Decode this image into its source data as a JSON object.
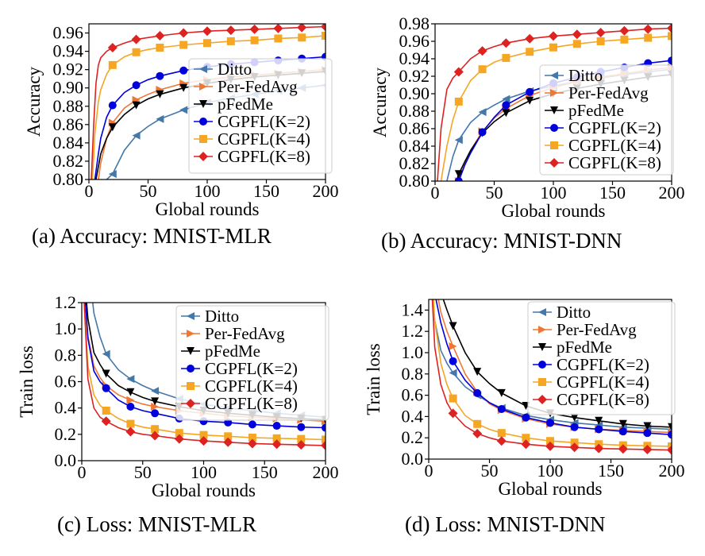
{
  "captions": [
    "(a) Accuracy: MNIST-MLR",
    "(b) Accuracy: MNIST-DNN",
    "(c) Loss: MNIST-MLR",
    "(d) Loss: MNIST-DNN"
  ],
  "colors": {
    "Ditto": "#4477aa",
    "Per-FedAvg": "#ee7733",
    "pFedMe": "#000000",
    "CGPFL(K=2)": "#0000dd",
    "CGPFL(K=4)": "#f5a623",
    "CGPFL(K=8)": "#dd2222"
  },
  "chart_data": [
    {
      "type": "line",
      "xlabel": "Global rounds",
      "ylabel": "Accuracy",
      "xlim": [
        0,
        200
      ],
      "ylim": [
        0.8,
        0.97
      ],
      "xticks": [
        0,
        50,
        100,
        150,
        200
      ],
      "yticks": [
        0.8,
        0.82,
        0.84,
        0.86,
        0.88,
        0.9,
        0.92,
        0.94,
        0.96
      ],
      "yticklabels": [
        "0.80",
        "0.82",
        "0.84",
        "0.86",
        "0.88",
        "0.90",
        "0.92",
        "0.94",
        "0.96"
      ],
      "legend": "right",
      "series": [
        {
          "name": "Ditto",
          "marker": "tri-left",
          "x": [
            15,
            20,
            30,
            40,
            50,
            60,
            80,
            100,
            120,
            140,
            160,
            180,
            200
          ],
          "values": [
            0.8,
            0.806,
            0.832,
            0.848,
            0.858,
            0.866,
            0.876,
            0.884,
            0.889,
            0.893,
            0.897,
            0.9,
            0.903
          ]
        },
        {
          "name": "Per-FedAvg",
          "marker": "tri-right",
          "x": [
            8,
            10,
            15,
            20,
            30,
            40,
            50,
            60,
            80,
            100,
            120,
            140,
            160,
            180,
            200
          ],
          "values": [
            0.8,
            0.818,
            0.845,
            0.862,
            0.878,
            0.887,
            0.893,
            0.898,
            0.905,
            0.909,
            0.912,
            0.914,
            0.916,
            0.918,
            0.92
          ]
        },
        {
          "name": "pFedMe",
          "marker": "tri-down",
          "x": [
            6,
            10,
            15,
            20,
            30,
            40,
            50,
            60,
            80,
            100,
            120,
            140,
            160,
            180,
            200
          ],
          "values": [
            0.8,
            0.828,
            0.845,
            0.857,
            0.871,
            0.881,
            0.888,
            0.893,
            0.9,
            0.905,
            0.909,
            0.912,
            0.914,
            0.916,
            0.918
          ]
        },
        {
          "name": "CGPFL(K=2)",
          "marker": "circle",
          "x": [
            5,
            8,
            10,
            15,
            20,
            30,
            40,
            50,
            60,
            80,
            100,
            120,
            140,
            160,
            180,
            200
          ],
          "values": [
            0.8,
            0.828,
            0.845,
            0.868,
            0.881,
            0.895,
            0.903,
            0.909,
            0.913,
            0.919,
            0.923,
            0.926,
            0.928,
            0.93,
            0.932,
            0.934
          ]
        },
        {
          "name": "CGPFL(K=4)",
          "marker": "square",
          "x": [
            3,
            5,
            8,
            10,
            15,
            20,
            30,
            40,
            50,
            60,
            80,
            100,
            120,
            140,
            160,
            180,
            200
          ],
          "values": [
            0.8,
            0.85,
            0.885,
            0.898,
            0.915,
            0.925,
            0.934,
            0.939,
            0.942,
            0.944,
            0.947,
            0.949,
            0.951,
            0.952,
            0.954,
            0.955,
            0.957
          ]
        },
        {
          "name": "CGPFL(K=8)",
          "marker": "diamond",
          "x": [
            2,
            4,
            6,
            8,
            10,
            15,
            20,
            30,
            40,
            50,
            60,
            80,
            100,
            120,
            140,
            160,
            180,
            200
          ],
          "values": [
            0.8,
            0.86,
            0.905,
            0.925,
            0.933,
            0.94,
            0.944,
            0.949,
            0.953,
            0.955,
            0.957,
            0.96,
            0.962,
            0.963,
            0.964,
            0.965,
            0.966,
            0.967
          ]
        }
      ]
    },
    {
      "type": "line",
      "xlabel": "Global rounds",
      "ylabel": "Accuracy",
      "xlim": [
        0,
        200
      ],
      "ylim": [
        0.8,
        0.98
      ],
      "xticks": [
        0,
        50,
        100,
        150,
        200
      ],
      "yticks": [
        0.8,
        0.82,
        0.84,
        0.86,
        0.88,
        0.9,
        0.92,
        0.94,
        0.96,
        0.98
      ],
      "yticklabels": [
        "0.80",
        "0.82",
        "0.84",
        "0.86",
        "0.88",
        "0.90",
        "0.92",
        "0.94",
        "0.96",
        "0.98"
      ],
      "legend": "center-left",
      "series": [
        {
          "name": "Ditto",
          "marker": "tri-left",
          "x": [
            10,
            15,
            20,
            30,
            40,
            50,
            60,
            80,
            100,
            120,
            140,
            160,
            180,
            200
          ],
          "values": [
            0.8,
            0.828,
            0.847,
            0.867,
            0.879,
            0.887,
            0.894,
            0.903,
            0.909,
            0.914,
            0.918,
            0.922,
            0.925,
            0.928
          ]
        },
        {
          "name": "Per-FedAvg",
          "marker": "tri-right",
          "x": [
            20,
            25,
            30,
            40,
            50,
            60,
            80,
            100,
            120,
            140,
            160,
            180,
            200
          ],
          "values": [
            0.8,
            0.82,
            0.835,
            0.857,
            0.872,
            0.883,
            0.898,
            0.907,
            0.914,
            0.919,
            0.923,
            0.927,
            0.93
          ]
        },
        {
          "name": "pFedMe",
          "marker": "tri-down",
          "x": [
            18,
            20,
            25,
            30,
            40,
            50,
            60,
            80,
            100,
            120,
            140,
            160,
            180,
            200
          ],
          "values": [
            0.8,
            0.808,
            0.822,
            0.835,
            0.855,
            0.868,
            0.878,
            0.892,
            0.9,
            0.906,
            0.911,
            0.915,
            0.919,
            0.922
          ]
        },
        {
          "name": "CGPFL(K=2)",
          "marker": "circle",
          "x": [
            20,
            25,
            30,
            40,
            50,
            60,
            80,
            100,
            120,
            140,
            160,
            180,
            200
          ],
          "values": [
            0.8,
            0.818,
            0.832,
            0.856,
            0.873,
            0.887,
            0.902,
            0.912,
            0.919,
            0.925,
            0.93,
            0.935,
            0.938
          ]
        },
        {
          "name": "CGPFL(K=4)",
          "marker": "square",
          "x": [
            5,
            10,
            15,
            20,
            30,
            40,
            50,
            60,
            80,
            100,
            120,
            140,
            160,
            180,
            200
          ],
          "values": [
            0.8,
            0.84,
            0.87,
            0.891,
            0.915,
            0.928,
            0.936,
            0.941,
            0.948,
            0.953,
            0.957,
            0.96,
            0.962,
            0.964,
            0.966
          ]
        },
        {
          "name": "CGPFL(K=8)",
          "marker": "diamond",
          "x": [
            2,
            5,
            10,
            15,
            20,
            30,
            40,
            50,
            60,
            80,
            100,
            120,
            140,
            160,
            180,
            200
          ],
          "values": [
            0.8,
            0.86,
            0.905,
            0.918,
            0.925,
            0.94,
            0.949,
            0.954,
            0.958,
            0.963,
            0.966,
            0.968,
            0.97,
            0.972,
            0.974,
            0.975
          ]
        }
      ]
    },
    {
      "type": "line",
      "xlabel": "Global rounds",
      "ylabel": "Train loss",
      "xlim": [
        0,
        200
      ],
      "ylim": [
        0.0,
        1.2
      ],
      "xticks": [
        0,
        50,
        100,
        150,
        200
      ],
      "yticks": [
        0.0,
        0.2,
        0.4,
        0.6,
        0.8,
        1.0,
        1.2
      ],
      "yticklabels": [
        "0.0",
        "0.2",
        "0.4",
        "0.6",
        "0.8",
        "1.0",
        "1.2"
      ],
      "legend": "right",
      "series": [
        {
          "name": "Ditto",
          "marker": "tri-left",
          "x": [
            9,
            10,
            15,
            20,
            30,
            40,
            50,
            60,
            80,
            100,
            120,
            140,
            160,
            180,
            200
          ],
          "values": [
            1.2,
            1.12,
            0.94,
            0.81,
            0.69,
            0.62,
            0.57,
            0.53,
            0.47,
            0.43,
            0.4,
            0.38,
            0.36,
            0.345,
            0.33
          ]
        },
        {
          "name": "Per-FedAvg",
          "marker": "tri-right",
          "x": [
            3,
            5,
            10,
            15,
            20,
            30,
            40,
            50,
            60,
            80,
            100,
            120,
            140,
            160,
            180,
            200
          ],
          "values": [
            1.2,
            0.95,
            0.72,
            0.63,
            0.57,
            0.5,
            0.46,
            0.43,
            0.41,
            0.38,
            0.36,
            0.34,
            0.33,
            0.32,
            0.31,
            0.3
          ]
        },
        {
          "name": "pFedMe",
          "marker": "tri-down",
          "x": [
            4,
            5,
            10,
            15,
            20,
            30,
            40,
            50,
            60,
            80,
            100,
            120,
            140,
            160,
            180,
            200
          ],
          "values": [
            1.2,
            1.08,
            0.82,
            0.73,
            0.66,
            0.57,
            0.52,
            0.48,
            0.45,
            0.41,
            0.38,
            0.36,
            0.345,
            0.33,
            0.32,
            0.31
          ]
        },
        {
          "name": "CGPFL(K=2)",
          "marker": "circle",
          "x": [
            3,
            5,
            10,
            15,
            20,
            30,
            40,
            50,
            60,
            80,
            100,
            120,
            140,
            160,
            180,
            200
          ],
          "values": [
            1.2,
            0.93,
            0.68,
            0.6,
            0.55,
            0.46,
            0.41,
            0.38,
            0.36,
            0.32,
            0.3,
            0.29,
            0.275,
            0.265,
            0.255,
            0.25
          ]
        },
        {
          "name": "CGPFL(K=4)",
          "marker": "square",
          "x": [
            2,
            5,
            10,
            15,
            20,
            30,
            40,
            50,
            60,
            80,
            100,
            120,
            140,
            160,
            180,
            200
          ],
          "values": [
            1.2,
            0.72,
            0.5,
            0.42,
            0.38,
            0.32,
            0.28,
            0.255,
            0.24,
            0.21,
            0.195,
            0.185,
            0.175,
            0.17,
            0.165,
            0.16
          ]
        },
        {
          "name": "CGPFL(K=8)",
          "marker": "diamond",
          "x": [
            2,
            5,
            10,
            15,
            20,
            30,
            40,
            50,
            60,
            80,
            100,
            120,
            140,
            160,
            180,
            200
          ],
          "values": [
            1.2,
            0.62,
            0.4,
            0.33,
            0.3,
            0.25,
            0.22,
            0.2,
            0.19,
            0.165,
            0.15,
            0.14,
            0.13,
            0.125,
            0.12,
            0.115
          ]
        }
      ]
    },
    {
      "type": "line",
      "xlabel": "Global rounds",
      "ylabel": "Train loss",
      "xlim": [
        0,
        200
      ],
      "ylim": [
        0.0,
        1.5
      ],
      "xticks": [
        0,
        50,
        100,
        150,
        200
      ],
      "yticks": [
        0.0,
        0.2,
        0.4,
        0.6,
        0.8,
        1.0,
        1.2,
        1.4
      ],
      "yticklabels": [
        "0.0",
        "0.2",
        "0.4",
        "0.6",
        "0.8",
        "1.0",
        "1.2",
        "1.4"
      ],
      "legend": "top-right",
      "series": [
        {
          "name": "Ditto",
          "marker": "tri-left",
          "x": [
            3,
            5,
            10,
            15,
            20,
            30,
            40,
            50,
            60,
            80,
            100,
            120,
            140,
            160,
            180,
            200
          ],
          "values": [
            1.5,
            1.3,
            1.02,
            0.9,
            0.81,
            0.68,
            0.6,
            0.53,
            0.48,
            0.41,
            0.37,
            0.34,
            0.32,
            0.3,
            0.29,
            0.28
          ]
        },
        {
          "name": "Per-FedAvg",
          "marker": "tri-right",
          "x": [
            8,
            10,
            15,
            20,
            30,
            40,
            50,
            60,
            80,
            100,
            120,
            140,
            160,
            180,
            200
          ],
          "values": [
            1.5,
            1.38,
            1.2,
            1.06,
            0.8,
            0.63,
            0.52,
            0.46,
            0.38,
            0.33,
            0.3,
            0.28,
            0.27,
            0.26,
            0.25
          ]
        },
        {
          "name": "pFedMe",
          "marker": "tri-down",
          "x": [
            12,
            15,
            20,
            30,
            40,
            50,
            60,
            80,
            100,
            120,
            140,
            160,
            180,
            200
          ],
          "values": [
            1.5,
            1.4,
            1.25,
            1.0,
            0.82,
            0.71,
            0.62,
            0.5,
            0.43,
            0.39,
            0.36,
            0.33,
            0.31,
            0.3
          ]
        },
        {
          "name": "CGPFL(K=2)",
          "marker": "circle",
          "x": [
            6,
            10,
            15,
            20,
            30,
            40,
            50,
            60,
            80,
            100,
            120,
            140,
            160,
            180,
            200
          ],
          "values": [
            1.5,
            1.28,
            1.08,
            0.92,
            0.74,
            0.62,
            0.53,
            0.47,
            0.39,
            0.34,
            0.3,
            0.28,
            0.26,
            0.245,
            0.23
          ]
        },
        {
          "name": "CGPFL(K=4)",
          "marker": "square",
          "x": [
            4,
            5,
            10,
            15,
            20,
            30,
            40,
            50,
            60,
            80,
            100,
            120,
            140,
            160,
            180,
            200
          ],
          "values": [
            1.5,
            1.3,
            0.9,
            0.7,
            0.57,
            0.41,
            0.33,
            0.28,
            0.245,
            0.2,
            0.17,
            0.155,
            0.14,
            0.13,
            0.125,
            0.12
          ]
        },
        {
          "name": "CGPFL(K=8)",
          "marker": "diamond",
          "x": [
            3,
            5,
            10,
            15,
            20,
            30,
            40,
            50,
            60,
            80,
            100,
            120,
            140,
            160,
            180,
            200
          ],
          "values": [
            1.5,
            1.05,
            0.7,
            0.53,
            0.43,
            0.31,
            0.24,
            0.2,
            0.17,
            0.14,
            0.12,
            0.11,
            0.1,
            0.095,
            0.09,
            0.085
          ]
        }
      ]
    }
  ]
}
